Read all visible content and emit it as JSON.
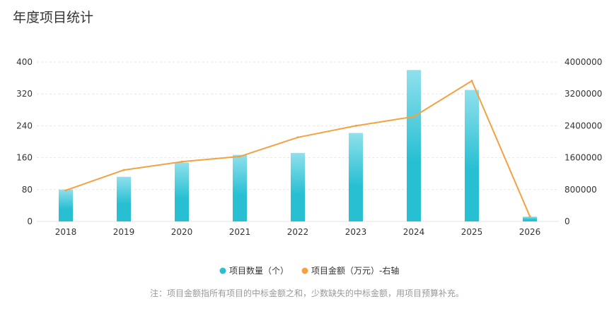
{
  "page": {
    "title": "年度项目统计",
    "note": "注：项目金额指所有项目的中标金额之和，少数缺失的中标金额，用项目预算补充。"
  },
  "chart_data": {
    "type": "bar",
    "title": "年度项目统计",
    "categories": [
      "2018",
      "2019",
      "2020",
      "2021",
      "2022",
      "2023",
      "2024",
      "2025",
      "2026"
    ],
    "series": [
      {
        "name": "项目数量（个）",
        "type": "bar",
        "axis": "left",
        "values": [
          80,
          112,
          148,
          167,
          172,
          222,
          380,
          330,
          12
        ]
      },
      {
        "name": "项目金额（万元）-右轴",
        "type": "line",
        "axis": "right",
        "values": [
          780000,
          1290000,
          1500000,
          1630000,
          2110000,
          2400000,
          2630000,
          3530000,
          130000
        ]
      }
    ],
    "left_axis": {
      "ylim": [
        0,
        400
      ],
      "ticks": [
        "0",
        "80",
        "160",
        "240",
        "320",
        "400"
      ]
    },
    "right_axis": {
      "ylim": [
        0,
        4000000
      ],
      "ticks": [
        "0",
        "800000",
        "1600000",
        "2400000",
        "3200000",
        "4000000"
      ]
    },
    "legend": [
      "项目数量（个）",
      "项目金额（万元）-右轴"
    ],
    "legend_position": "bottom",
    "grid": true,
    "colors": {
      "bar_top": "#8fe0ec",
      "bar_bottom": "#29bfd3",
      "line": "#f5a142",
      "grid": "#e6e6e6",
      "axis_text": "#333333",
      "legend_text": "#333333"
    }
  }
}
